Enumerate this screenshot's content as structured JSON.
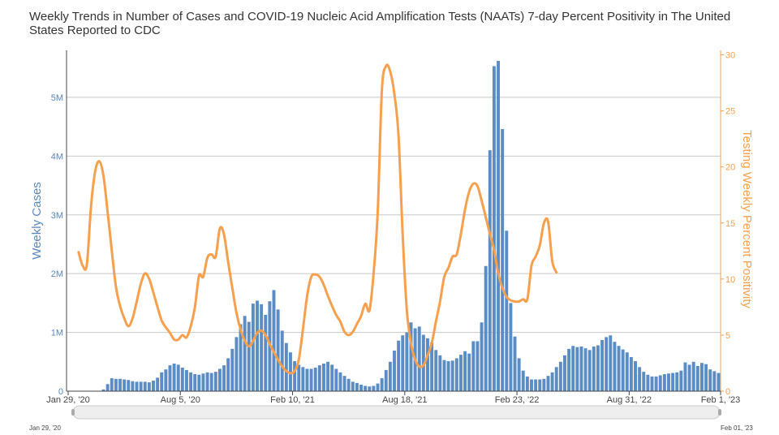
{
  "colors": {
    "cases": "#5b8dc4",
    "cases_axis": "#5b87b8",
    "positivity": "#f6a04d",
    "grid": "#c8c8c8"
  },
  "chart_data": {
    "type": "bar",
    "title": "Weekly Trends in Number of Cases and COVID-19 Nucleic Acid Amplification Tests (NAATs) 7-day Percent Positivity in The United States Reported to CDC",
    "ylabel": "Weekly Cases",
    "y2label": "Testing Weekly Percent Positivity",
    "ylim": [
      0,
      5800000
    ],
    "y2lim": [
      0,
      30.4
    ],
    "yticks": [
      {
        "v": 0,
        "label": "0"
      },
      {
        "v": 1000000,
        "label": "1M"
      },
      {
        "v": 2000000,
        "label": "2M"
      },
      {
        "v": 3000000,
        "label": "3M"
      },
      {
        "v": 4000000,
        "label": "4M"
      },
      {
        "v": 5000000,
        "label": "5M"
      }
    ],
    "y2ticks": [
      {
        "v": 0,
        "label": "0"
      },
      {
        "v": 5,
        "label": "5"
      },
      {
        "v": 10,
        "label": "10"
      },
      {
        "v": 15,
        "label": "15"
      },
      {
        "v": 20,
        "label": "20"
      },
      {
        "v": 25,
        "label": "25"
      },
      {
        "v": 30,
        "label": "30"
      }
    ],
    "xticks": [
      {
        "w": 0,
        "label": "Jan 29, '20"
      },
      {
        "w": 27,
        "label": "Aug 5, '20"
      },
      {
        "w": 54,
        "label": "Feb 10, '21"
      },
      {
        "w": 81,
        "label": "Aug 18, '21"
      },
      {
        "w": 108,
        "label": "Feb 23, '22"
      },
      {
        "w": 135,
        "label": "Aug 31, '22"
      },
      {
        "w": 157,
        "label": "Feb 1, '23"
      }
    ],
    "week_start": "Jan 29, '20",
    "cases_series": {
      "name": "Weekly Cases",
      "values": [
        0,
        0,
        0,
        0,
        0,
        0,
        0,
        0,
        30000,
        120000,
        220000,
        210000,
        210000,
        200000,
        190000,
        170000,
        160000,
        160000,
        160000,
        150000,
        180000,
        230000,
        320000,
        370000,
        440000,
        470000,
        450000,
        400000,
        360000,
        320000,
        290000,
        280000,
        300000,
        320000,
        310000,
        330000,
        380000,
        440000,
        560000,
        720000,
        920000,
        1140000,
        1280000,
        1180000,
        1490000,
        1540000,
        1480000,
        1300000,
        1530000,
        1720000,
        1390000,
        1030000,
        820000,
        660000,
        510000,
        450000,
        410000,
        380000,
        380000,
        400000,
        440000,
        470000,
        500000,
        450000,
        380000,
        320000,
        260000,
        210000,
        160000,
        140000,
        110000,
        90000,
        80000,
        90000,
        130000,
        220000,
        360000,
        500000,
        690000,
        860000,
        950000,
        1000000,
        1170000,
        1070000,
        1100000,
        960000,
        900000,
        830000,
        700000,
        610000,
        530000,
        510000,
        520000,
        560000,
        620000,
        680000,
        640000,
        850000,
        850000,
        1170000,
        2130000,
        4100000,
        5530000,
        5620000,
        4460000,
        2730000,
        1500000,
        930000,
        560000,
        350000,
        250000,
        200000,
        200000,
        200000,
        210000,
        260000,
        320000,
        410000,
        500000,
        610000,
        720000,
        770000,
        750000,
        760000,
        730000,
        700000,
        760000,
        780000,
        870000,
        920000,
        950000,
        840000,
        770000,
        710000,
        660000,
        580000,
        510000,
        410000,
        330000,
        280000,
        250000,
        250000,
        270000,
        290000,
        300000,
        310000,
        320000,
        350000,
        490000,
        450000,
        500000,
        430000,
        480000,
        460000,
        370000,
        340000,
        310000
      ]
    },
    "positivity_series": {
      "name": "Testing Weekly Percent Positivity",
      "points": [
        [
          2,
          12.4
        ],
        [
          3,
          11.2
        ],
        [
          4,
          11.3
        ],
        [
          5,
          16.5
        ],
        [
          6,
          19.6
        ],
        [
          7,
          20.5
        ],
        [
          8,
          19.2
        ],
        [
          9,
          16
        ],
        [
          10,
          12.5
        ],
        [
          11,
          9.3
        ],
        [
          12,
          7.6
        ],
        [
          13,
          6.5
        ],
        [
          14,
          5.8
        ],
        [
          15,
          6.5
        ],
        [
          16,
          8
        ],
        [
          17,
          9.6
        ],
        [
          18,
          10.5
        ],
        [
          19,
          10
        ],
        [
          20,
          8.8
        ],
        [
          21,
          7.5
        ],
        [
          22,
          6.3
        ],
        [
          23,
          5.7
        ],
        [
          24,
          5.2
        ],
        [
          25,
          4.6
        ],
        [
          26,
          4.6
        ],
        [
          27,
          5
        ],
        [
          28,
          4.8
        ],
        [
          29,
          5.8
        ],
        [
          30,
          7.5
        ],
        [
          31,
          10.3
        ],
        [
          32,
          10.2
        ],
        [
          33,
          11.9
        ],
        [
          34,
          12.2
        ],
        [
          35,
          12
        ],
        [
          36,
          14.5
        ],
        [
          37,
          14
        ],
        [
          38,
          11.5
        ],
        [
          39,
          9.2
        ],
        [
          40,
          7
        ],
        [
          41,
          5.5
        ],
        [
          42,
          4.5
        ],
        [
          43,
          4
        ],
        [
          44,
          4.5
        ],
        [
          45,
          5.2
        ],
        [
          46,
          5.4
        ],
        [
          47,
          5
        ],
        [
          48,
          4.2
        ],
        [
          49,
          3.5
        ],
        [
          50,
          2.8
        ],
        [
          51,
          2.2
        ],
        [
          52,
          1.8
        ],
        [
          53,
          1.6
        ],
        [
          54,
          1.8
        ],
        [
          55,
          2.8
        ],
        [
          56,
          5.5
        ],
        [
          57,
          8.5
        ],
        [
          58,
          10.2
        ],
        [
          59,
          10.4
        ],
        [
          60,
          10.2
        ],
        [
          61,
          9.5
        ],
        [
          62,
          8.5
        ],
        [
          63,
          7.6
        ],
        [
          64,
          6.8
        ],
        [
          65,
          6.2
        ],
        [
          66,
          5.3
        ],
        [
          67,
          5
        ],
        [
          68,
          5.3
        ],
        [
          69,
          6
        ],
        [
          70,
          6.7
        ],
        [
          71,
          7.8
        ],
        [
          72,
          7.2
        ],
        [
          73,
          10.5
        ],
        [
          74,
          16
        ],
        [
          75,
          26.8
        ],
        [
          76,
          29
        ],
        [
          77,
          28.5
        ],
        [
          78,
          26.5
        ],
        [
          79,
          22.8
        ],
        [
          80,
          14
        ],
        [
          81,
          7.2
        ],
        [
          82,
          4.3
        ],
        [
          83,
          2.8
        ],
        [
          84,
          2.2
        ],
        [
          85,
          2.3
        ],
        [
          86,
          3.2
        ],
        [
          87,
          4.3
        ],
        [
          88,
          6.2
        ],
        [
          89,
          8
        ],
        [
          90,
          10.2
        ],
        [
          91,
          11
        ],
        [
          92,
          12
        ],
        [
          93,
          12.2
        ],
        [
          94,
          14
        ],
        [
          95,
          16.2
        ],
        [
          96,
          17.8
        ],
        [
          97,
          18.5
        ],
        [
          98,
          18.3
        ],
        [
          99,
          17
        ],
        [
          100,
          15.5
        ],
        [
          101,
          14
        ],
        [
          102,
          12.6
        ],
        [
          103,
          10.5
        ],
        [
          104,
          9.2
        ],
        [
          105,
          8.4
        ],
        [
          106,
          8.1
        ],
        [
          107,
          8
        ],
        [
          108,
          8
        ],
        [
          109,
          8.2
        ],
        [
          110,
          8.2
        ],
        [
          111,
          11.2
        ],
        [
          112,
          12
        ],
        [
          113,
          13
        ],
        [
          114,
          15
        ],
        [
          115,
          15.1
        ],
        [
          116,
          11.6
        ],
        [
          117,
          10.6
        ]
      ]
    },
    "range_slider": {
      "start_label": "Jan 29, '20",
      "end_label": "Feb 01, '23"
    }
  }
}
